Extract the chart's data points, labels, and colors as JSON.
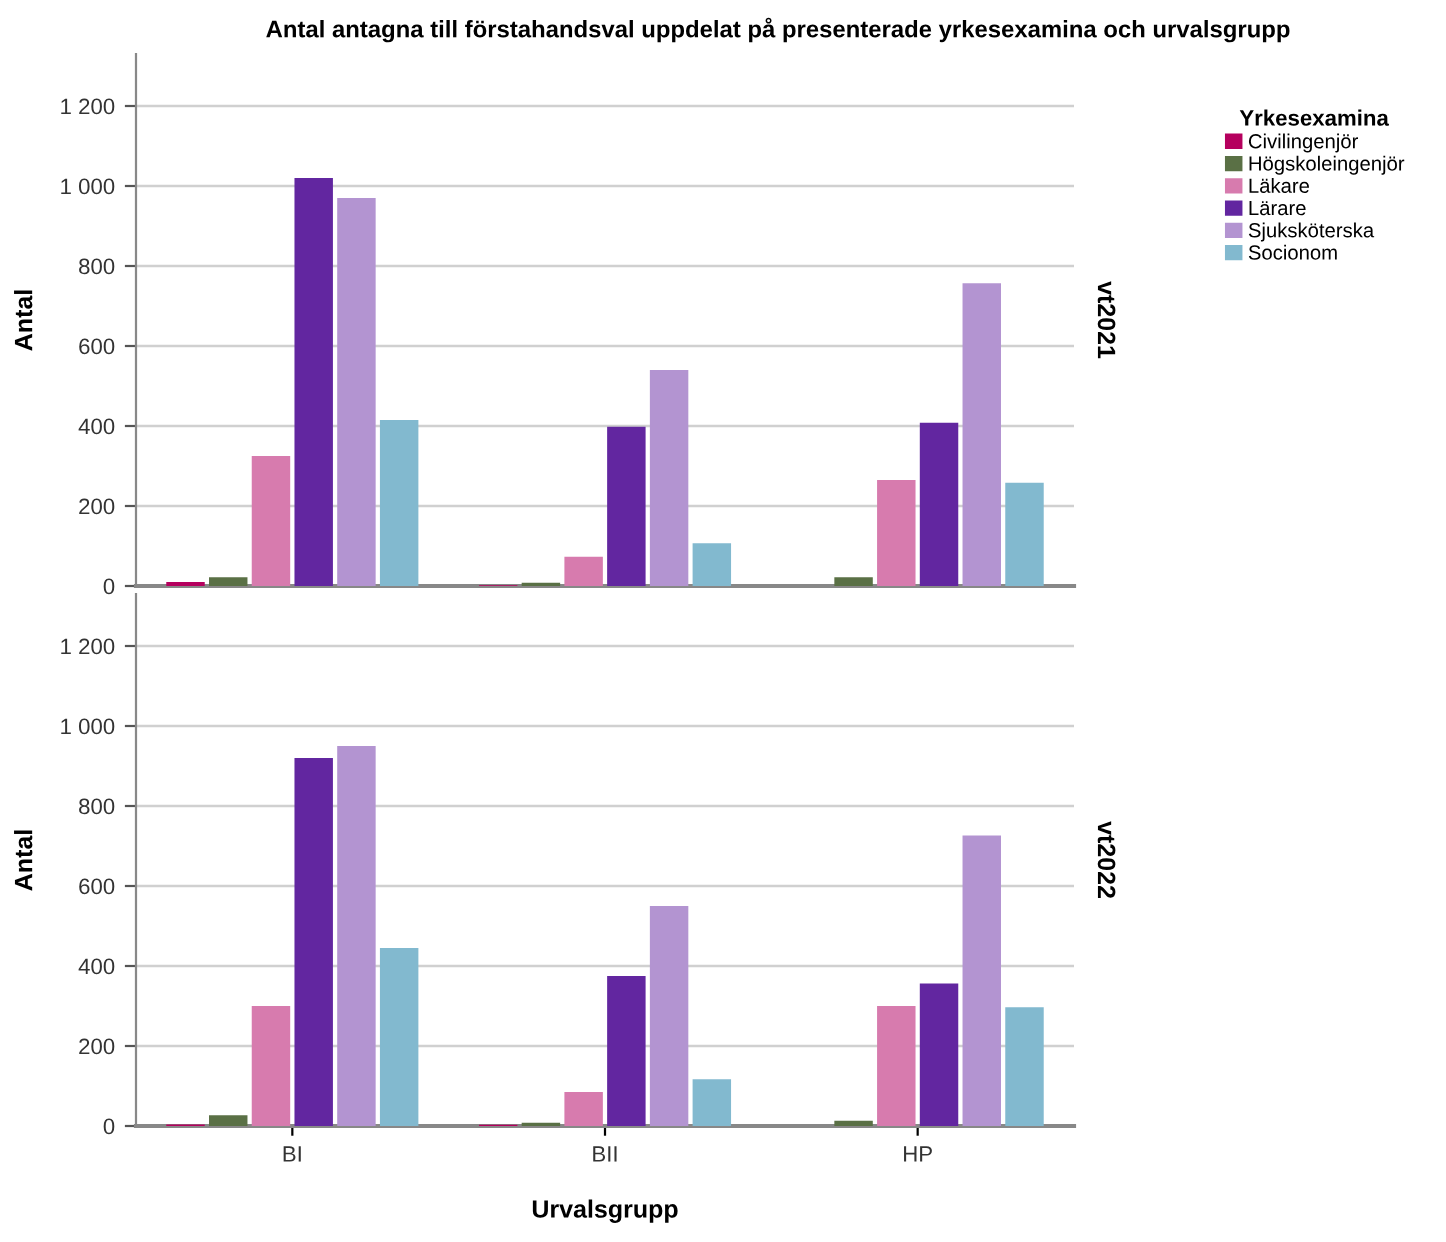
{
  "chart_data": [
    {
      "type": "bar",
      "title": "Antal antagna till förstahandsval uppdelat på presenterade yrkesexamina och urvalsgrupp",
      "ylabel": "Antal",
      "annotations": [
        "vt2021"
      ],
      "legend_title": "Yrkesexamina",
      "legend": "right",
      "grid": "y",
      "categories": [
        null,
        null,
        null
      ],
      "ylim": [
        0,
        1330
      ],
      "yticks": [
        0,
        {
          "value": 200,
          "label": "200"
        },
        {
          "value": 400,
          "label": "400"
        },
        {
          "value": 600,
          "label": "600"
        },
        {
          "value": 800,
          "label": "800"
        },
        {
          "value": 1000,
          "label": "1 000"
        },
        {
          "value": 1200,
          "label": "1 200"
        }
      ],
      "series": [
        {
          "name": "Civilingenjör",
          "color": "#b5005e",
          "values": [
            10,
            2,
            0
          ]
        },
        {
          "name": "Högskoleingenjör",
          "color": "#5a7045",
          "values": [
            22,
            8,
            22
          ]
        },
        {
          "name": "Läkare",
          "color": "#d77bae",
          "values": [
            325,
            73,
            265
          ]
        },
        {
          "name": "Lärare",
          "color": "#6226a0",
          "values": [
            1020,
            398,
            408
          ]
        },
        {
          "name": "Sjuksköterska",
          "color": "#b394d1",
          "values": [
            970,
            540,
            757
          ]
        },
        {
          "name": "Socionom",
          "color": "#82b9cf",
          "values": [
            415,
            107,
            258
          ]
        }
      ]
    },
    {
      "type": "bar",
      "ylabel": "Antal",
      "xlabel": "Urvalsgrupp",
      "annotations": [
        "vt2022"
      ],
      "grid": "y",
      "categories": [
        "BI",
        "BII",
        "HP"
      ],
      "ylim": [
        0,
        1330
      ],
      "yticks": [
        0,
        {
          "value": 200,
          "label": "200"
        },
        {
          "value": 400,
          "label": "400"
        },
        {
          "value": 600,
          "label": "600"
        },
        {
          "value": 800,
          "label": "800"
        },
        {
          "value": 1000,
          "label": "1 000"
        },
        {
          "value": 1200,
          "label": "1 200"
        }
      ],
      "series": [
        {
          "color": "#b5005e",
          "values": [
            4,
            3,
            0
          ]
        },
        {
          "color": "#5a7045",
          "values": [
            27,
            8,
            13
          ]
        },
        {
          "color": "#d77bae",
          "values": [
            300,
            85,
            300
          ]
        },
        {
          "color": "#6226a0",
          "values": [
            920,
            375,
            356
          ]
        },
        {
          "color": "#b394d1",
          "values": [
            950,
            550,
            726
          ]
        },
        {
          "color": "#82b9cf",
          "values": [
            445,
            117,
            297
          ]
        }
      ]
    }
  ]
}
